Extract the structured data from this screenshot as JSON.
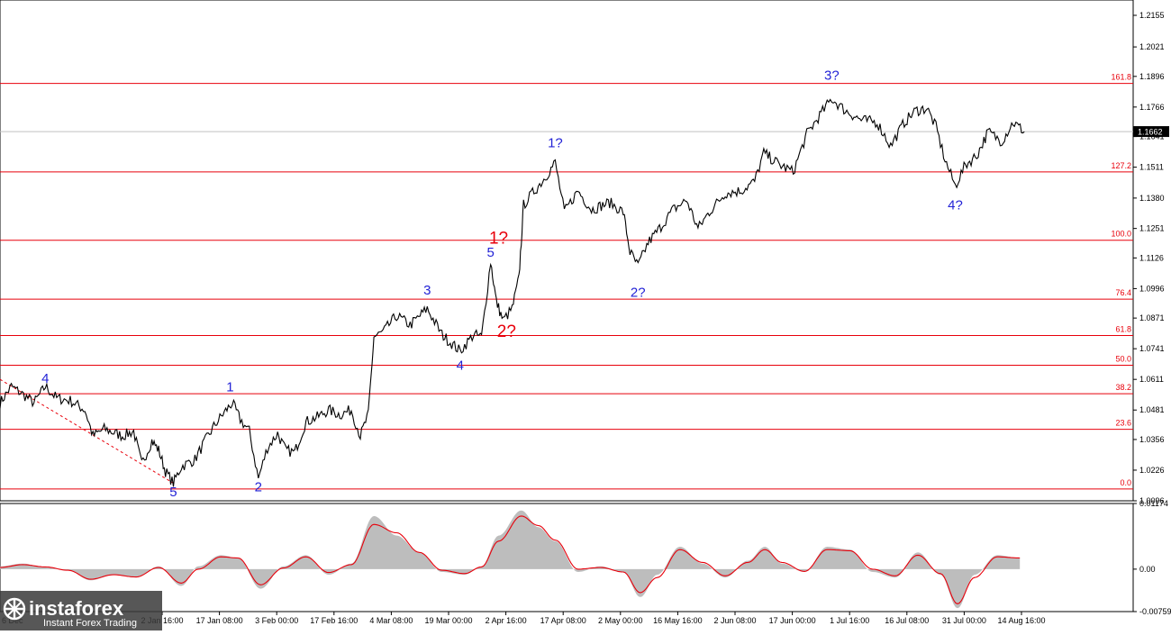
{
  "chart_data": [
    {
      "type": "line",
      "title": "",
      "price_axis": {
        "ylim": [
          1.0096,
          1.222
        ],
        "ticks": [
          "1.2155",
          "1.2021",
          "1.1896",
          "1.1766",
          "1.1641",
          "1.1511",
          "1.1380",
          "1.1251",
          "1.1126",
          "1.0996",
          "1.0871",
          "1.0741",
          "1.0611",
          "1.0481",
          "1.0356",
          "1.0226",
          "1.0096"
        ],
        "current_price": "1.1662",
        "current_price_value": 1.1662
      },
      "time_axis": {
        "labels": [
          "2 Jan 16:00",
          "17 Jan 08:00",
          "3 Feb 00:00",
          "17 Feb 16:00",
          "4 Mar 08:00",
          "19 Mar 00:00",
          "2 Apr 16:00",
          "17 Apr 08:00",
          "2 May 00:00",
          "16 May 16:00",
          "2 Jun 08:00",
          "17 Jun 00:00",
          "1 Jul 16:00",
          "16 Jul 08:00",
          "31 Jul 00:00",
          "14 Aug 16:00"
        ],
        "partial_left_label": "6 Dec"
      },
      "fibonacci_levels": [
        {
          "label": "161.8",
          "price": 1.1866
        },
        {
          "label": "127.2",
          "price": 1.1491
        },
        {
          "label": "100.0",
          "price": 1.1201
        },
        {
          "label": "76.4",
          "price": 1.0951
        },
        {
          "label": "61.8",
          "price": 1.0797
        },
        {
          "label": "50.0",
          "price": 1.0671
        },
        {
          "label": "38.2",
          "price": 1.055
        },
        {
          "label": "23.6",
          "price": 1.0399
        },
        {
          "label": "0.0",
          "price": 1.0146
        }
      ],
      "wave_labels": [
        {
          "text": "4",
          "color": "blue",
          "t": 0.04,
          "price": 1.0597
        },
        {
          "text": "5",
          "color": "blue",
          "t": 0.153,
          "price": 1.0116
        },
        {
          "text": "1",
          "color": "blue",
          "t": 0.203,
          "price": 1.0561
        },
        {
          "text": "2",
          "color": "blue",
          "t": 0.228,
          "price": 1.0136
        },
        {
          "text": "3",
          "color": "blue",
          "t": 0.377,
          "price": 1.0971
        },
        {
          "text": "4",
          "color": "blue",
          "t": 0.406,
          "price": 1.0651
        },
        {
          "text": "5",
          "color": "blue",
          "t": 0.433,
          "price": 1.1131
        },
        {
          "text": "1?",
          "color": "red",
          "t": 0.44,
          "price": 1.1186
        },
        {
          "text": "2?",
          "color": "red",
          "t": 0.447,
          "price": 1.0791
        },
        {
          "text": "1?",
          "color": "blue",
          "t": 0.49,
          "price": 1.1596
        },
        {
          "text": "2?",
          "color": "blue",
          "t": 0.563,
          "price": 1.0961
        },
        {
          "text": "3?",
          "color": "blue",
          "t": 0.734,
          "price": 1.1881
        },
        {
          "text": "4?",
          "color": "blue",
          "t": 0.843,
          "price": 1.1331
        }
      ],
      "price_path": [
        [
          0.0,
          1.0511
        ],
        [
          0.01,
          1.0581
        ],
        [
          0.022,
          1.0541
        ],
        [
          0.03,
          1.0511
        ],
        [
          0.04,
          1.0581
        ],
        [
          0.05,
          1.0531
        ],
        [
          0.062,
          1.0521
        ],
        [
          0.075,
          1.0481
        ],
        [
          0.082,
          1.0371
        ],
        [
          0.092,
          1.0401
        ],
        [
          0.108,
          1.0371
        ],
        [
          0.118,
          1.0391
        ],
        [
          0.125,
          1.0251
        ],
        [
          0.134,
          1.0351
        ],
        [
          0.14,
          1.0311
        ],
        [
          0.146,
          1.0221
        ],
        [
          0.153,
          1.0171
        ],
        [
          0.16,
          1.0241
        ],
        [
          0.172,
          1.0271
        ],
        [
          0.18,
          1.0341
        ],
        [
          0.19,
          1.0421
        ],
        [
          0.198,
          1.0471
        ],
        [
          0.205,
          1.0511
        ],
        [
          0.212,
          1.0441
        ],
        [
          0.22,
          1.0391
        ],
        [
          0.228,
          1.0191
        ],
        [
          0.236,
          1.0321
        ],
        [
          0.245,
          1.0381
        ],
        [
          0.252,
          1.0311
        ],
        [
          0.26,
          1.0301
        ],
        [
          0.27,
          1.0431
        ],
        [
          0.28,
          1.0451
        ],
        [
          0.29,
          1.0481
        ],
        [
          0.3,
          1.0461
        ],
        [
          0.31,
          1.0481
        ],
        [
          0.318,
          1.0371
        ],
        [
          0.325,
          1.0461
        ],
        [
          0.33,
          1.0791
        ],
        [
          0.338,
          1.0811
        ],
        [
          0.35,
          1.0881
        ],
        [
          0.362,
          1.0841
        ],
        [
          0.377,
          1.0911
        ],
        [
          0.39,
          1.0801
        ],
        [
          0.406,
          1.0731
        ],
        [
          0.418,
          1.0801
        ],
        [
          0.425,
          1.0791
        ],
        [
          0.433,
          1.1111
        ],
        [
          0.438,
          1.0941
        ],
        [
          0.444,
          1.0861
        ],
        [
          0.452,
          1.0911
        ],
        [
          0.458,
          1.1041
        ],
        [
          0.462,
          1.1351
        ],
        [
          0.47,
          1.1401
        ],
        [
          0.48,
          1.1461
        ],
        [
          0.49,
          1.1531
        ],
        [
          0.498,
          1.1321
        ],
        [
          0.51,
          1.1411
        ],
        [
          0.522,
          1.1331
        ],
        [
          0.538,
          1.1361
        ],
        [
          0.55,
          1.1321
        ],
        [
          0.556,
          1.1151
        ],
        [
          0.563,
          1.1091
        ],
        [
          0.572,
          1.1191
        ],
        [
          0.582,
          1.1251
        ],
        [
          0.594,
          1.1331
        ],
        [
          0.606,
          1.1371
        ],
        [
          0.616,
          1.1251
        ],
        [
          0.626,
          1.1321
        ],
        [
          0.64,
          1.1401
        ],
        [
          0.654,
          1.1411
        ],
        [
          0.666,
          1.1451
        ],
        [
          0.674,
          1.1571
        ],
        [
          0.688,
          1.1521
        ],
        [
          0.7,
          1.1491
        ],
        [
          0.712,
          1.1651
        ],
        [
          0.722,
          1.1721
        ],
        [
          0.734,
          1.1801
        ],
        [
          0.746,
          1.1751
        ],
        [
          0.76,
          1.1711
        ],
        [
          0.774,
          1.1701
        ],
        [
          0.786,
          1.1601
        ],
        [
          0.798,
          1.1701
        ],
        [
          0.808,
          1.1751
        ],
        [
          0.818,
          1.1761
        ],
        [
          0.826,
          1.1681
        ],
        [
          0.834,
          1.1541
        ],
        [
          0.843,
          1.1431
        ],
        [
          0.852,
          1.1521
        ],
        [
          0.862,
          1.1561
        ],
        [
          0.872,
          1.1661
        ],
        [
          0.884,
          1.1621
        ],
        [
          0.894,
          1.1701
        ],
        [
          0.904,
          1.1662
        ]
      ],
      "dashed_trendline": [
        [
          0.0,
          1.0611
        ],
        [
          0.153,
          1.0171
        ]
      ]
    },
    {
      "type": "area",
      "title": "",
      "indicator_axis": {
        "ylim": [
          -0.00759,
          0.01174
        ],
        "ticks": [
          "0.01174",
          "0.00",
          "-0.00759"
        ]
      },
      "histogram": [
        [
          0.0,
          0.0005
        ],
        [
          0.02,
          0.001
        ],
        [
          0.04,
          0.0003
        ],
        [
          0.06,
          -0.0002
        ],
        [
          0.08,
          -0.002
        ],
        [
          0.1,
          -0.001
        ],
        [
          0.12,
          -0.0015
        ],
        [
          0.14,
          0.0005
        ],
        [
          0.16,
          -0.003
        ],
        [
          0.175,
          0.0005
        ],
        [
          0.195,
          0.0025
        ],
        [
          0.21,
          0.002
        ],
        [
          0.23,
          -0.0035
        ],
        [
          0.25,
          0.0005
        ],
        [
          0.27,
          0.0025
        ],
        [
          0.29,
          -0.001
        ],
        [
          0.31,
          0.001
        ],
        [
          0.33,
          0.0095
        ],
        [
          0.35,
          0.006
        ],
        [
          0.37,
          0.003
        ],
        [
          0.39,
          -0.0005
        ],
        [
          0.41,
          -0.001
        ],
        [
          0.425,
          0.0005
        ],
        [
          0.44,
          0.006
        ],
        [
          0.46,
          0.0105
        ],
        [
          0.475,
          0.0075
        ],
        [
          0.49,
          0.005
        ],
        [
          0.51,
          -0.0005
        ],
        [
          0.53,
          0.0005
        ],
        [
          0.55,
          -0.0005
        ],
        [
          0.565,
          -0.005
        ],
        [
          0.58,
          -0.001
        ],
        [
          0.6,
          0.004
        ],
        [
          0.62,
          0.001
        ],
        [
          0.64,
          -0.0015
        ],
        [
          0.66,
          0.0015
        ],
        [
          0.675,
          0.004
        ],
        [
          0.69,
          0.001
        ],
        [
          0.71,
          -0.0005
        ],
        [
          0.73,
          0.004
        ],
        [
          0.75,
          0.0035
        ],
        [
          0.77,
          -0.0005
        ],
        [
          0.79,
          -0.0015
        ],
        [
          0.81,
          0.003
        ],
        [
          0.83,
          -0.001
        ],
        [
          0.845,
          -0.007
        ],
        [
          0.86,
          -0.001
        ],
        [
          0.88,
          0.0025
        ],
        [
          0.9,
          0.002
        ]
      ],
      "signal_line": [
        [
          0.0,
          0.0003
        ],
        [
          0.02,
          0.0008
        ],
        [
          0.04,
          0.0004
        ],
        [
          0.06,
          -0.0002
        ],
        [
          0.08,
          -0.0018
        ],
        [
          0.1,
          -0.001
        ],
        [
          0.12,
          -0.0014
        ],
        [
          0.14,
          0.0003
        ],
        [
          0.16,
          -0.0025
        ],
        [
          0.175,
          0.0
        ],
        [
          0.195,
          0.0022
        ],
        [
          0.21,
          0.002
        ],
        [
          0.23,
          -0.0028
        ],
        [
          0.25,
          0.0002
        ],
        [
          0.27,
          0.0022
        ],
        [
          0.29,
          -0.0006
        ],
        [
          0.31,
          0.0008
        ],
        [
          0.33,
          0.008
        ],
        [
          0.35,
          0.0065
        ],
        [
          0.37,
          0.003
        ],
        [
          0.39,
          -0.0002
        ],
        [
          0.41,
          -0.0008
        ],
        [
          0.425,
          0.0004
        ],
        [
          0.44,
          0.005
        ],
        [
          0.46,
          0.0095
        ],
        [
          0.475,
          0.0078
        ],
        [
          0.49,
          0.0052
        ],
        [
          0.51,
          0.0
        ],
        [
          0.53,
          0.0003
        ],
        [
          0.55,
          -0.0005
        ],
        [
          0.565,
          -0.0042
        ],
        [
          0.58,
          -0.0015
        ],
        [
          0.6,
          0.0035
        ],
        [
          0.62,
          0.0012
        ],
        [
          0.64,
          -0.0012
        ],
        [
          0.66,
          0.0012
        ],
        [
          0.675,
          0.0035
        ],
        [
          0.69,
          0.0012
        ],
        [
          0.71,
          -0.0004
        ],
        [
          0.73,
          0.0035
        ],
        [
          0.75,
          0.0033
        ],
        [
          0.77,
          0.0
        ],
        [
          0.79,
          -0.0012
        ],
        [
          0.81,
          0.0025
        ],
        [
          0.83,
          -0.0008
        ],
        [
          0.845,
          -0.0062
        ],
        [
          0.86,
          -0.0015
        ],
        [
          0.88,
          0.0022
        ],
        [
          0.9,
          0.002
        ]
      ]
    }
  ],
  "watermark": {
    "brand": "instaforex",
    "tagline": "Instant Forex Trading"
  },
  "colors": {
    "price_line": "#000000",
    "fib_line": "#e8000b",
    "wave_blue": "#2323d6",
    "wave_red": "#e8000b",
    "indicator_fill": "#bdbdbd",
    "signal_line": "#e8000b",
    "current_price_box": "#000000",
    "current_price_line": "#c0c0c0",
    "logo_bg": "#3a3a3a"
  }
}
